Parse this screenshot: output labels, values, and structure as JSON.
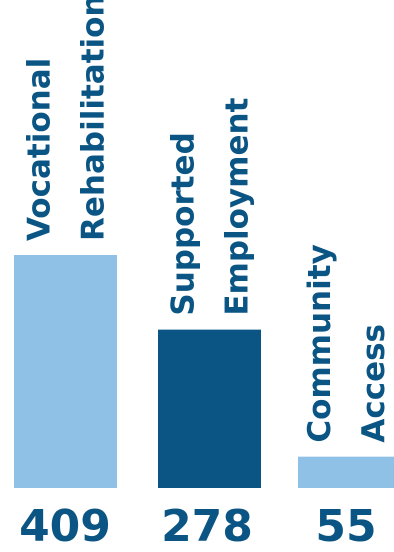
{
  "chart_data": {
    "type": "bar",
    "categories": [
      [
        "Vocational",
        "Rehabilitation"
      ],
      [
        "Supported",
        "Employment"
      ],
      [
        "Community",
        "Access"
      ]
    ],
    "values": [
      409,
      278,
      55
    ],
    "value_labels": [
      "409",
      "278",
      "55"
    ],
    "colors": [
      "#8fc0e6",
      "#0b5584",
      "#8fc0e6"
    ],
    "text_color": "#0b5584",
    "title": "",
    "xlabel": "",
    "ylabel": "",
    "ylim": [
      0,
      409
    ],
    "grid": false,
    "legend": "none"
  }
}
